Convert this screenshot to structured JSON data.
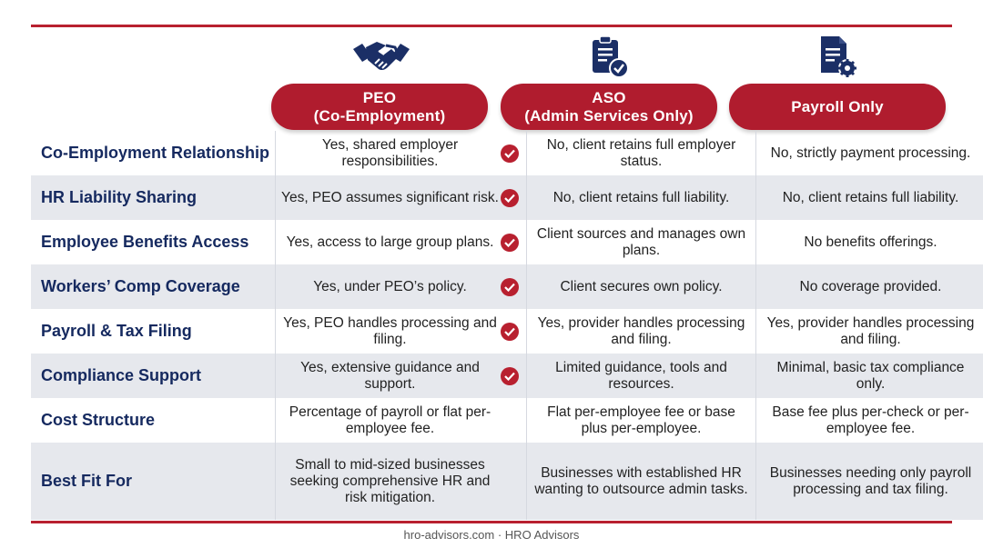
{
  "columns": [
    {
      "icon": "handshake-icon",
      "title_line1": "PEO",
      "title_line2": "(Co-Employment)"
    },
    {
      "icon": "clipboard-check-icon",
      "title_line1": "ASO",
      "title_line2": "(Admin Services Only)"
    },
    {
      "icon": "document-gear-icon",
      "title_line1": "Payroll Only",
      "title_line2": ""
    }
  ],
  "rows": [
    {
      "label": "Co-Employment Relationship",
      "peo": "Yes, shared employer responsibilities.",
      "aso": "No, client retains full employer status.",
      "payroll": "No, strictly payment processing.",
      "peo_check": true
    },
    {
      "label": "HR Liability Sharing",
      "peo": "Yes, PEO assumes significant risk.",
      "aso": "No, client retains full liability.",
      "payroll": "No, client retains full liability.",
      "peo_check": true
    },
    {
      "label": "Employee Benefits Access",
      "peo": "Yes, access to large group plans.",
      "aso": "Client sources and manages own plans.",
      "payroll": "No benefits offerings.",
      "peo_check": true
    },
    {
      "label": "Workers’ Comp Coverage",
      "peo": "Yes, under PEO’s policy.",
      "aso": "Client secures own policy.",
      "payroll": "No coverage provided.",
      "peo_check": true
    },
    {
      "label": "Payroll & Tax Filing",
      "peo": "Yes, PEO handles processing and filing.",
      "aso": "Yes, provider handles processing and filing.",
      "payroll": "Yes, provider handles processing and filing.",
      "peo_check": true
    },
    {
      "label": "Compliance Support",
      "peo": "Yes, extensive guidance and support.",
      "aso": "Limited guidance, tools and resources.",
      "payroll": "Minimal, basic tax compliance only.",
      "peo_check": true
    },
    {
      "label": "Cost Structure",
      "peo": "Percentage of payroll or flat per-employee fee.",
      "aso": "Flat per-employee fee or base plus per-employee.",
      "payroll": "Base fee plus per-check or per-employee fee.",
      "peo_check": false
    },
    {
      "label": "Best Fit For",
      "peo": "Small to mid-sized businesses seeking comprehensive HR and risk mitigation.",
      "aso": "Businesses with established HR wanting to outsource admin tasks.",
      "payroll": "Businesses needing only payroll processing and tax filing.",
      "peo_check": false
    }
  ],
  "footer": "hro-advisors.com · HRO Advisors",
  "colors": {
    "accent": "#b01c2e",
    "navy": "#15295f",
    "row_alt": "#e6e8ed"
  }
}
